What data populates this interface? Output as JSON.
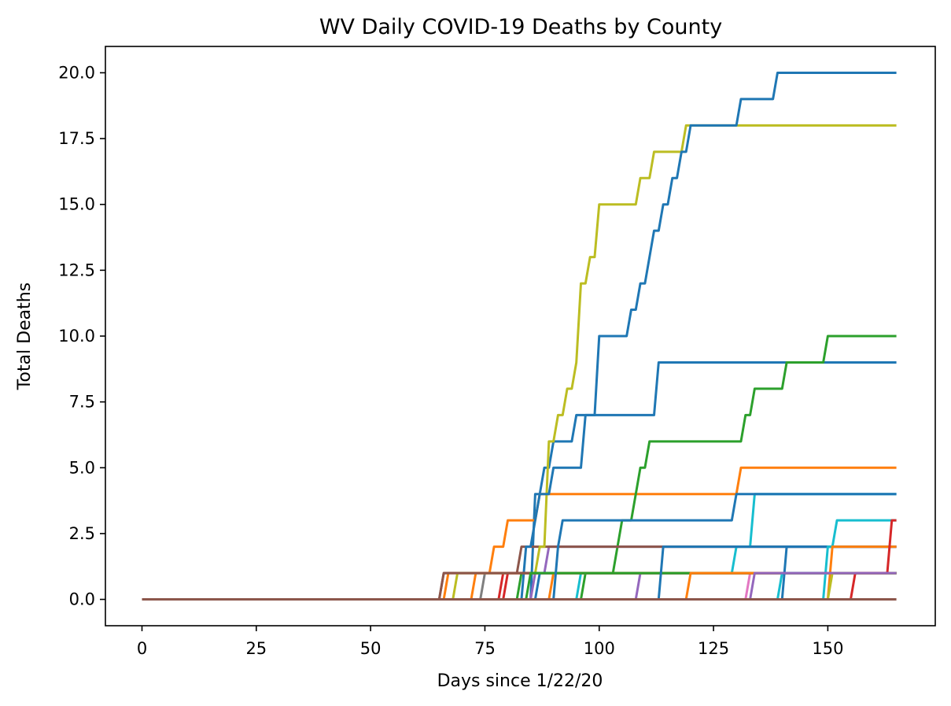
{
  "chart_data": {
    "type": "line",
    "title": "WV Daily COVID-19 Deaths by County",
    "xlabel": "Days since 1/22/20",
    "ylabel": "Total Deaths",
    "xlim": [
      -8,
      173.5
    ],
    "ylim": [
      -1,
      21
    ],
    "xticks": [
      0,
      25,
      50,
      75,
      100,
      125,
      150
    ],
    "xtick_labels": [
      "0",
      "25",
      "50",
      "75",
      "100",
      "125",
      "150"
    ],
    "yticks": [
      0,
      2.5,
      5,
      7.5,
      10,
      12.5,
      15,
      17.5,
      20
    ],
    "ytick_labels": [
      "0.0",
      "2.5",
      "5.0",
      "7.5",
      "10.0",
      "12.5",
      "15.0",
      "17.5",
      "20.0"
    ],
    "grid": false,
    "x_max_day": 165,
    "series": [
      {
        "color": "#1f77b4",
        "steps": [
          [
            86,
            4
          ],
          [
            88,
            5
          ],
          [
            90,
            6
          ],
          [
            95,
            7
          ],
          [
            113,
            9
          ],
          [
            165,
            9
          ]
        ]
      },
      {
        "color": "#ff7f0e",
        "steps": [
          [
            67,
            1
          ],
          [
            77,
            2
          ],
          [
            80,
            3
          ],
          [
            87,
            4
          ],
          [
            131,
            5
          ],
          [
            165,
            5
          ]
        ]
      },
      {
        "color": "#2ca02c",
        "steps": [
          [
            97,
            1
          ],
          [
            104,
            2
          ],
          [
            105,
            3
          ],
          [
            108,
            4
          ],
          [
            109,
            5
          ],
          [
            111,
            6
          ],
          [
            131,
            6
          ],
          [
            132,
            7
          ],
          [
            134,
            8
          ],
          [
            141,
            9
          ],
          [
            150,
            10
          ],
          [
            165,
            10
          ]
        ]
      },
      {
        "color": "#d62728",
        "steps": [
          [
            79,
            1
          ],
          [
            165,
            1
          ]
        ]
      },
      {
        "color": "#9467bd",
        "steps": [
          [
            86,
            1
          ],
          [
            89,
            2
          ],
          [
            165,
            2
          ]
        ]
      },
      {
        "color": "#8c564b",
        "steps": [
          [
            66,
            1
          ],
          [
            82,
            1
          ],
          [
            83,
            2
          ],
          [
            165,
            2
          ]
        ]
      },
      {
        "color": "#e377c2",
        "steps": [
          [
            133,
            1
          ],
          [
            165,
            1
          ]
        ]
      },
      {
        "color": "#7f7f7f",
        "steps": [
          [
            75,
            1
          ],
          [
            165,
            1
          ]
        ]
      },
      {
        "color": "#bcbd22",
        "steps": [
          [
            69,
            1
          ],
          [
            87,
            2
          ],
          [
            89,
            6
          ],
          [
            91,
            7
          ],
          [
            93,
            8
          ],
          [
            95,
            9
          ],
          [
            96,
            12
          ],
          [
            98,
            13
          ],
          [
            100,
            15
          ],
          [
            109,
            16
          ],
          [
            112,
            17
          ],
          [
            119,
            18
          ],
          [
            165,
            18
          ]
        ]
      },
      {
        "color": "#17becf",
        "steps": [
          [
            96,
            1
          ],
          [
            124,
            1
          ],
          [
            130,
            2
          ],
          [
            134,
            4
          ],
          [
            165,
            4
          ]
        ]
      },
      {
        "color": "#1f77b4",
        "steps": [
          [
            84,
            2
          ],
          [
            86,
            3
          ],
          [
            87,
            4
          ],
          [
            90,
            5
          ],
          [
            97,
            7
          ],
          [
            100,
            10
          ],
          [
            107,
            11
          ],
          [
            109,
            12
          ],
          [
            111,
            13
          ],
          [
            112,
            14
          ],
          [
            114,
            15
          ],
          [
            116,
            16
          ],
          [
            118,
            17
          ],
          [
            120,
            18
          ],
          [
            131,
            19
          ],
          [
            139,
            20
          ],
          [
            165,
            20
          ]
        ]
      },
      {
        "color": "#ff7f0e",
        "steps": [
          [
            73,
            1
          ],
          [
            165,
            1
          ]
        ]
      },
      {
        "color": "#2ca02c",
        "steps": [
          [
            83,
            1
          ],
          [
            165,
            1
          ]
        ]
      },
      {
        "color": "#d62728",
        "steps": [
          [
            80,
            1
          ],
          [
            165,
            1
          ]
        ]
      },
      {
        "color": "#9467bd",
        "steps": [
          [
            109,
            1
          ],
          [
            165,
            1
          ]
        ]
      },
      {
        "color": "#8c564b",
        "steps": [
          [
            66,
            1
          ],
          [
            165,
            1
          ]
        ]
      },
      {
        "color": "#1f77b4",
        "steps": [
          [
            87,
            1
          ],
          [
            165,
            1
          ]
        ]
      },
      {
        "color": "#ff7f0e",
        "steps": [
          [
            90,
            1
          ],
          [
            165,
            1
          ]
        ]
      },
      {
        "color": "#2ca02c",
        "steps": [
          [
            85,
            1
          ],
          [
            165,
            1
          ]
        ]
      },
      {
        "color": "#1f77b4",
        "steps": [
          [
            91,
            2
          ],
          [
            92,
            3
          ],
          [
            114,
            3
          ],
          [
            130,
            4
          ],
          [
            165,
            4
          ]
        ]
      },
      {
        "color": "#1f77b4",
        "steps": [
          [
            114,
            2
          ],
          [
            165,
            2
          ]
        ]
      },
      {
        "color": "#ff7f0e",
        "steps": [
          [
            120,
            1
          ],
          [
            165,
            1
          ]
        ]
      },
      {
        "color": "#17becf",
        "steps": [
          [
            140,
            1
          ],
          [
            165,
            1
          ]
        ]
      },
      {
        "color": "#1f77b4",
        "steps": [
          [
            141,
            2
          ],
          [
            165,
            2
          ]
        ]
      },
      {
        "color": "#17becf",
        "steps": [
          [
            150,
            2
          ],
          [
            152,
            3
          ],
          [
            165,
            3
          ]
        ]
      },
      {
        "color": "#ff7f0e",
        "steps": [
          [
            151,
            2
          ],
          [
            165,
            2
          ]
        ]
      },
      {
        "color": "#bcbd22",
        "steps": [
          [
            151,
            1
          ],
          [
            165,
            1
          ]
        ]
      },
      {
        "color": "#d62728",
        "steps": [
          [
            156,
            1
          ],
          [
            164,
            3
          ]
        ]
      },
      {
        "color": "#9467bd",
        "steps": [
          [
            134,
            1
          ],
          [
            165,
            1
          ]
        ]
      },
      {
        "color": "#8c564b",
        "steps": [
          [
            165,
            0
          ]
        ]
      }
    ]
  }
}
